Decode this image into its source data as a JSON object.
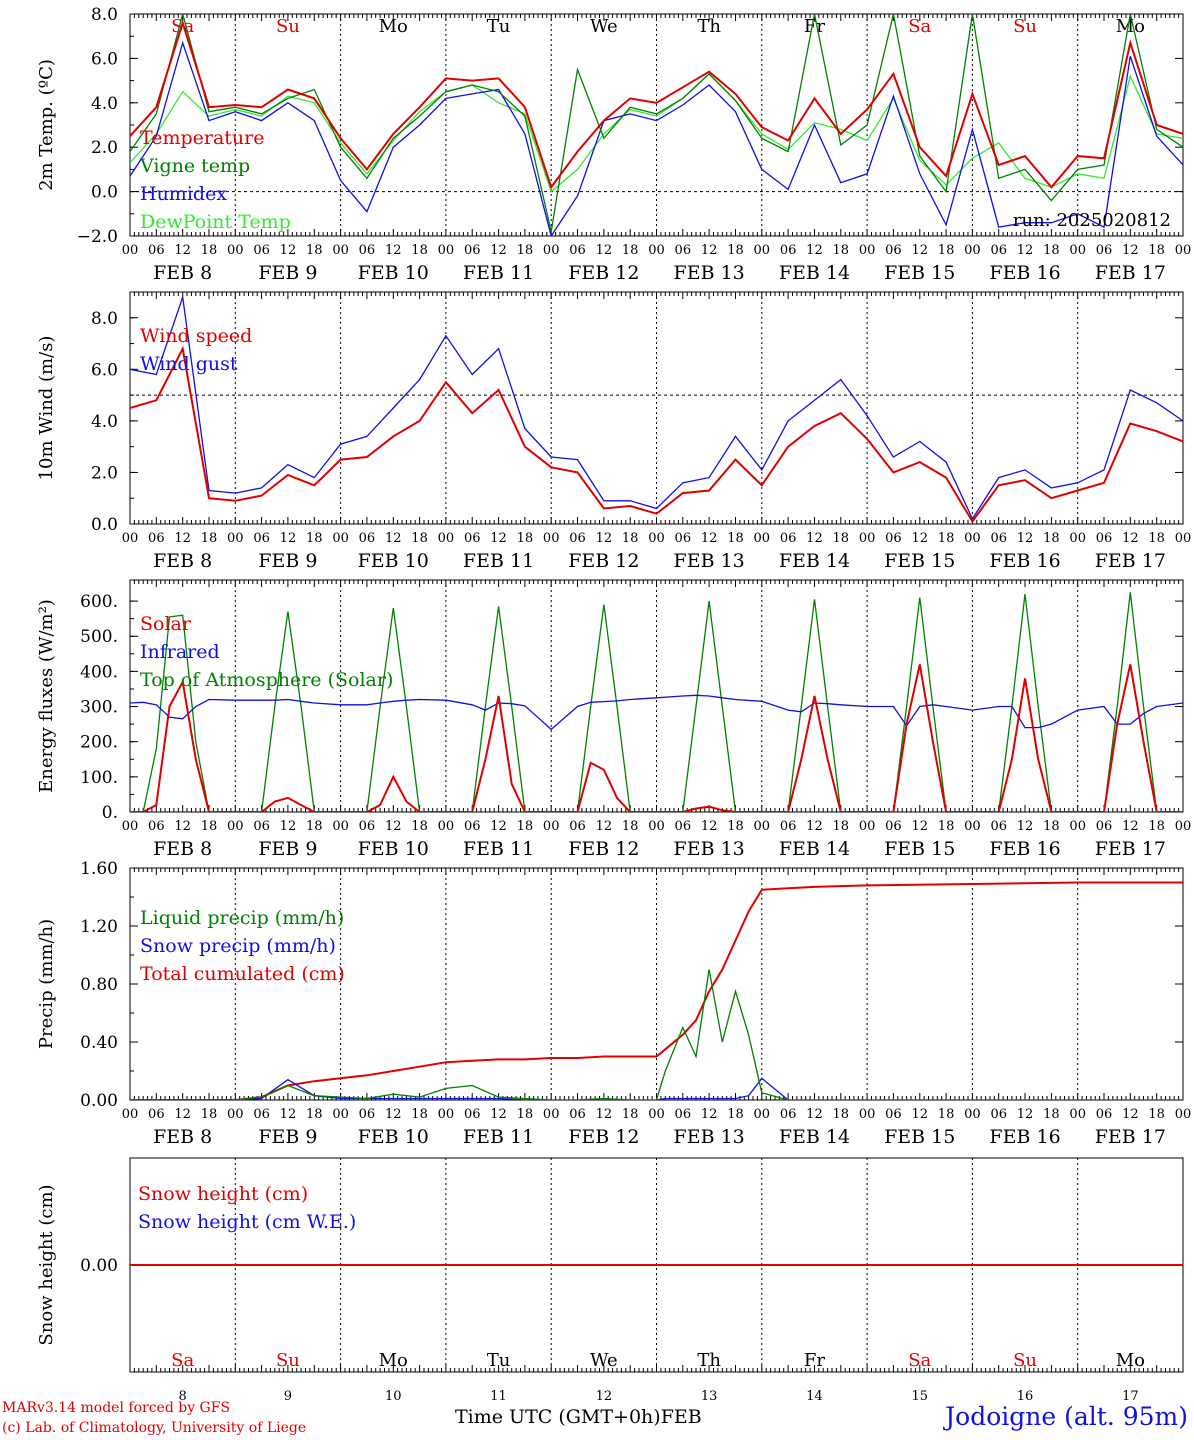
{
  "colors": {
    "red": "#e00000",
    "green": "#008000",
    "blue": "#1010e0",
    "lightgreen": "#33e833",
    "black": "#000000"
  },
  "days": {
    "names": [
      "Sa",
      "Su",
      "Mo",
      "Tu",
      "We",
      "Th",
      "Fr",
      "Sa",
      "Su",
      "Mo"
    ],
    "weekend": [
      true,
      true,
      false,
      false,
      false,
      false,
      false,
      true,
      true,
      false
    ],
    "dates": [
      "FEB  8",
      "FEB  9",
      "FEB 10",
      "FEB 11",
      "FEB 12",
      "FEB 13",
      "FEB 14",
      "FEB 15",
      "FEB 16",
      "FEB 17"
    ],
    "numbers": [
      "8",
      "9",
      "10",
      "11",
      "12",
      "13",
      "14",
      "15",
      "16",
      "17"
    ],
    "hours": [
      "00",
      "06",
      "12",
      "18"
    ],
    "last_hour": "00"
  },
  "footer": {
    "model": "MARv3.14 model forced by GFS",
    "credit": "(c) Lab. of Climatology, University of Liege",
    "time_label": "Time UTC (GMT+0h)",
    "month": "FEB",
    "station": "Jodoigne (alt. 95m)"
  },
  "chart_data": [
    {
      "type": "line",
      "ylabel": "2m Temp. (ºC)",
      "ylim": [
        -2.0,
        8.0
      ],
      "yticks": [
        "8.0",
        "6.0",
        "4.0",
        "2.0",
        "0.0",
        "−2.0"
      ],
      "ytick_values": [
        8,
        6,
        4,
        2,
        0,
        -2
      ],
      "refline": 0,
      "annotation": "run: 2025020812",
      "x_unit": "hours since 2025-02-08 00 UTC",
      "x": [
        0,
        6,
        12,
        18,
        24,
        30,
        36,
        42,
        48,
        54,
        60,
        66,
        72,
        78,
        84,
        90,
        96,
        102,
        108,
        114,
        120,
        126,
        132,
        138,
        144,
        150,
        156,
        162,
        168,
        174,
        180,
        186,
        192,
        198,
        204,
        210,
        216,
        222,
        228,
        234,
        240
      ],
      "series": [
        {
          "name": "Temperature",
          "color": "red",
          "values": [
            2.5,
            3.8,
            7.6,
            3.8,
            3.9,
            3.8,
            4.6,
            4.2,
            2.4,
            1.0,
            2.6,
            3.8,
            5.1,
            5.0,
            5.1,
            3.8,
            0.2,
            1.8,
            3.2,
            4.2,
            4.0,
            4.7,
            5.4,
            4.4,
            2.9,
            2.3,
            4.2,
            2.6,
            3.7,
            5.3,
            2.0,
            0.7,
            4.4,
            1.2,
            1.6,
            0.2,
            1.6,
            1.5,
            6.7,
            3.0,
            2.6
          ]
        },
        {
          "name": "Vigne temp",
          "color": "green",
          "values": [
            1.8,
            3.5,
            8.0,
            3.6,
            3.8,
            3.5,
            4.2,
            4.6,
            2.0,
            0.6,
            2.4,
            3.4,
            4.5,
            4.8,
            4.5,
            3.4,
            -1.8,
            5.5,
            2.4,
            3.8,
            3.5,
            4.2,
            5.3,
            4.1,
            2.4,
            1.8,
            8.0,
            2.1,
            3.0,
            8.0,
            1.6,
            0.0,
            8.0,
            0.6,
            1.0,
            -0.4,
            1.0,
            1.2,
            8.0,
            2.8,
            2.0
          ]
        },
        {
          "name": "Humidex",
          "color": "blue",
          "values": [
            0.7,
            2.5,
            6.7,
            3.2,
            3.6,
            3.2,
            4.0,
            3.2,
            0.5,
            -0.9,
            2.0,
            3.0,
            4.2,
            4.4,
            4.6,
            2.6,
            -2.0,
            -0.2,
            3.2,
            3.5,
            3.2,
            3.9,
            4.8,
            3.6,
            1.0,
            0.1,
            3.0,
            0.4,
            0.8,
            4.3,
            0.8,
            -1.5,
            2.8,
            -1.6,
            -1.4,
            -1.4,
            -1.0,
            -1.6,
            6.1,
            2.5,
            1.2
          ]
        },
        {
          "name": "DewPoint Temp",
          "color": "lightgreen",
          "values": [
            1.3,
            2.6,
            4.5,
            3.4,
            3.7,
            3.4,
            4.3,
            4.0,
            2.2,
            0.8,
            2.3,
            3.6,
            4.5,
            4.8,
            4.0,
            3.5,
            0.0,
            1.0,
            2.6,
            3.7,
            3.4,
            4.2,
            5.3,
            4.1,
            2.6,
            1.9,
            3.1,
            2.8,
            2.3,
            4.2,
            1.4,
            0.3,
            1.5,
            2.2,
            0.6,
            0.2,
            0.8,
            0.6,
            5.2,
            2.6,
            2.4
          ]
        }
      ]
    },
    {
      "type": "line",
      "ylabel": "10m Wind (m/s)",
      "ylim": [
        0,
        9
      ],
      "yticks": [
        "8.0",
        "6.0",
        "4.0",
        "2.0",
        "0.0"
      ],
      "ytick_values": [
        8,
        6,
        4,
        2,
        0
      ],
      "refline": 5,
      "x_unit": "hours since 2025-02-08 00 UTC",
      "x": [
        0,
        6,
        12,
        18,
        24,
        30,
        36,
        42,
        48,
        54,
        60,
        66,
        72,
        78,
        84,
        90,
        96,
        102,
        108,
        114,
        120,
        126,
        132,
        138,
        144,
        150,
        156,
        162,
        168,
        174,
        180,
        186,
        192,
        198,
        204,
        210,
        216,
        222,
        228,
        234,
        240
      ],
      "series": [
        {
          "name": "Wind speed",
          "color": "red",
          "values": [
            4.5,
            4.8,
            6.8,
            1.0,
            0.9,
            1.1,
            1.9,
            1.5,
            2.5,
            2.6,
            3.4,
            4.0,
            5.5,
            4.3,
            5.2,
            3.0,
            2.2,
            2.0,
            0.6,
            0.7,
            0.4,
            1.2,
            1.3,
            2.5,
            1.5,
            3.0,
            3.8,
            4.3,
            3.3,
            2.0,
            2.4,
            1.8,
            0.1,
            1.5,
            1.7,
            1.0,
            1.3,
            1.6,
            3.9,
            3.6,
            3.2
          ]
        },
        {
          "name": "Wind gust",
          "color": "blue",
          "values": [
            6.0,
            5.8,
            8.8,
            1.3,
            1.2,
            1.4,
            2.3,
            1.8,
            3.1,
            3.4,
            4.5,
            5.6,
            7.3,
            5.8,
            6.8,
            3.7,
            2.6,
            2.5,
            0.9,
            0.9,
            0.6,
            1.6,
            1.8,
            3.4,
            2.1,
            4.0,
            4.8,
            5.6,
            4.2,
            2.6,
            3.2,
            2.4,
            0.2,
            1.8,
            2.1,
            1.4,
            1.6,
            2.1,
            5.2,
            4.7,
            4.0
          ]
        }
      ]
    },
    {
      "type": "line",
      "ylabel": "Energy fluxes (W/m²)",
      "ylim": [
        0,
        660
      ],
      "yticks": [
        "600.",
        "500.",
        "400.",
        "300.",
        "200.",
        "100.",
        "0."
      ],
      "ytick_values": [
        600,
        500,
        400,
        300,
        200,
        100,
        0
      ],
      "x_unit": "hours since 2025-02-08 00 UTC",
      "x": [
        0,
        3,
        6,
        9,
        12,
        15,
        18,
        24,
        30,
        33,
        36,
        39,
        42,
        48,
        54,
        57,
        60,
        63,
        66,
        72,
        78,
        81,
        84,
        87,
        90,
        96,
        102,
        105,
        108,
        111,
        114,
        120,
        126,
        129,
        132,
        135,
        138,
        144,
        150,
        153,
        156,
        159,
        162,
        168,
        174,
        177,
        180,
        183,
        186,
        192,
        198,
        201,
        204,
        207,
        210,
        216,
        222,
        225,
        228,
        231,
        234,
        240
      ],
      "series": [
        {
          "name": "Solar",
          "color": "red",
          "values": [
            0,
            0,
            20,
            300,
            370,
            150,
            0,
            0,
            0,
            30,
            40,
            20,
            0,
            0,
            0,
            20,
            100,
            30,
            0,
            0,
            0,
            150,
            330,
            80,
            0,
            0,
            0,
            140,
            120,
            40,
            0,
            0,
            0,
            10,
            15,
            5,
            0,
            0,
            0,
            150,
            330,
            150,
            0,
            0,
            0,
            250,
            420,
            200,
            0,
            0,
            0,
            150,
            380,
            150,
            0,
            0,
            0,
            250,
            420,
            200,
            0,
            0
          ]
        },
        {
          "name": "Infrared",
          "color": "blue",
          "values": [
            310,
            312,
            305,
            270,
            265,
            300,
            320,
            318,
            318,
            318,
            320,
            315,
            310,
            305,
            305,
            310,
            315,
            318,
            320,
            318,
            305,
            290,
            310,
            308,
            302,
            235,
            300,
            312,
            314,
            316,
            320,
            325,
            330,
            332,
            330,
            325,
            320,
            315,
            290,
            285,
            310,
            308,
            305,
            300,
            300,
            245,
            300,
            305,
            300,
            290,
            300,
            300,
            240,
            240,
            250,
            290,
            300,
            250,
            250,
            280,
            300,
            310
          ]
        },
        {
          "name": "Top of Atmosphere (Solar)",
          "color": "green",
          "values": [
            0,
            0,
            180,
            555,
            560,
            200,
            0,
            0,
            0,
            300,
            570,
            300,
            0,
            0,
            0,
            300,
            580,
            300,
            0,
            0,
            0,
            300,
            585,
            300,
            0,
            0,
            0,
            300,
            590,
            300,
            0,
            0,
            0,
            300,
            600,
            300,
            0,
            0,
            0,
            300,
            605,
            300,
            0,
            0,
            0,
            300,
            610,
            300,
            0,
            0,
            0,
            300,
            620,
            300,
            0,
            0,
            0,
            300,
            625,
            300,
            0,
            0
          ]
        }
      ]
    },
    {
      "type": "line",
      "ylabel": "Precip (mm/h)",
      "ylim": [
        0,
        1.6
      ],
      "yticks": [
        "1.60",
        "1.20",
        "0.80",
        "0.40",
        "0.00"
      ],
      "ytick_values": [
        1.6,
        1.2,
        0.8,
        0.4,
        0
      ],
      "x_unit": "hours since 2025-02-08 00 UTC",
      "x": [
        0,
        24,
        30,
        36,
        42,
        48,
        54,
        60,
        66,
        72,
        78,
        84,
        90,
        96,
        102,
        108,
        114,
        120,
        122,
        126,
        129,
        132,
        135,
        138,
        141,
        144,
        150,
        156,
        168,
        192,
        216,
        240
      ],
      "series": [
        {
          "name": "Liquid precip (mm/h)",
          "color": "green",
          "values": [
            0,
            0,
            0.02,
            0.1,
            0.03,
            0.02,
            0.01,
            0.04,
            0.02,
            0.08,
            0.1,
            0.02,
            0.01,
            0,
            0,
            0.01,
            0,
            0,
            0.2,
            0.5,
            0.3,
            0.9,
            0.4,
            0.75,
            0.45,
            0.05,
            0,
            0,
            0,
            0,
            0,
            0
          ]
        },
        {
          "name": "Snow precip (mm/h)",
          "color": "blue",
          "values": [
            0,
            0,
            0.01,
            0.14,
            0.03,
            0.01,
            0.01,
            0.01,
            0.01,
            0.01,
            0.01,
            0.01,
            0,
            0,
            0,
            0,
            0,
            0,
            0.01,
            0.01,
            0.01,
            0.01,
            0.01,
            0.01,
            0.03,
            0.15,
            0,
            0,
            0,
            0,
            0,
            0
          ]
        },
        {
          "name": "Total cumulated (cm)",
          "color": "red",
          "values": [
            0,
            0,
            0.02,
            0.1,
            0.13,
            0.15,
            0.17,
            0.2,
            0.23,
            0.26,
            0.27,
            0.28,
            0.28,
            0.29,
            0.29,
            0.3,
            0.3,
            0.3,
            0.35,
            0.45,
            0.55,
            0.75,
            0.9,
            1.1,
            1.3,
            1.45,
            1.46,
            1.47,
            1.48,
            1.49,
            1.5,
            1.5
          ]
        }
      ]
    },
    {
      "type": "line",
      "ylabel": "Snow height (cm)",
      "ylim": [
        -1,
        1
      ],
      "yticks": [
        "0.00"
      ],
      "ytick_values": [
        0
      ],
      "x_unit": "hours since 2025-02-08 00 UTC",
      "x": [
        0,
        240
      ],
      "series": [
        {
          "name": "Snow height (cm)",
          "color": "red",
          "values": [
            0,
            0
          ]
        },
        {
          "name": "Snow height (cm W.E.)",
          "color": "blue",
          "values": [
            0,
            0
          ]
        }
      ]
    }
  ]
}
